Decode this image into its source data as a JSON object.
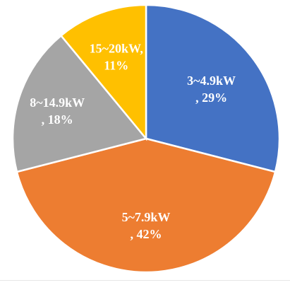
{
  "chart_data": {
    "type": "pie",
    "title": "",
    "slices": [
      {
        "category": "3~4.9kW",
        "value": 29,
        "label_line1": "3~4.9kW",
        "label_line2": ", 29%",
        "color": "#4472C4"
      },
      {
        "category": "5~7.9kW",
        "value": 42,
        "label_line1": "5~7.9kW",
        "label_line2": ", 42%",
        "color": "#ED7D31"
      },
      {
        "category": "8~14.9kW",
        "value": 18,
        "label_line1": "8~14.9kW",
        "label_line2": ", 18%",
        "color": "#A5A5A5"
      },
      {
        "category": "15~20kW",
        "value": 11,
        "label_line1": "15~20kW,",
        "label_line2": "11%",
        "color": "#FFC000"
      }
    ],
    "start_angle_deg": 0,
    "direction": "clockwise",
    "legend": "none",
    "data_labels": "inside"
  }
}
